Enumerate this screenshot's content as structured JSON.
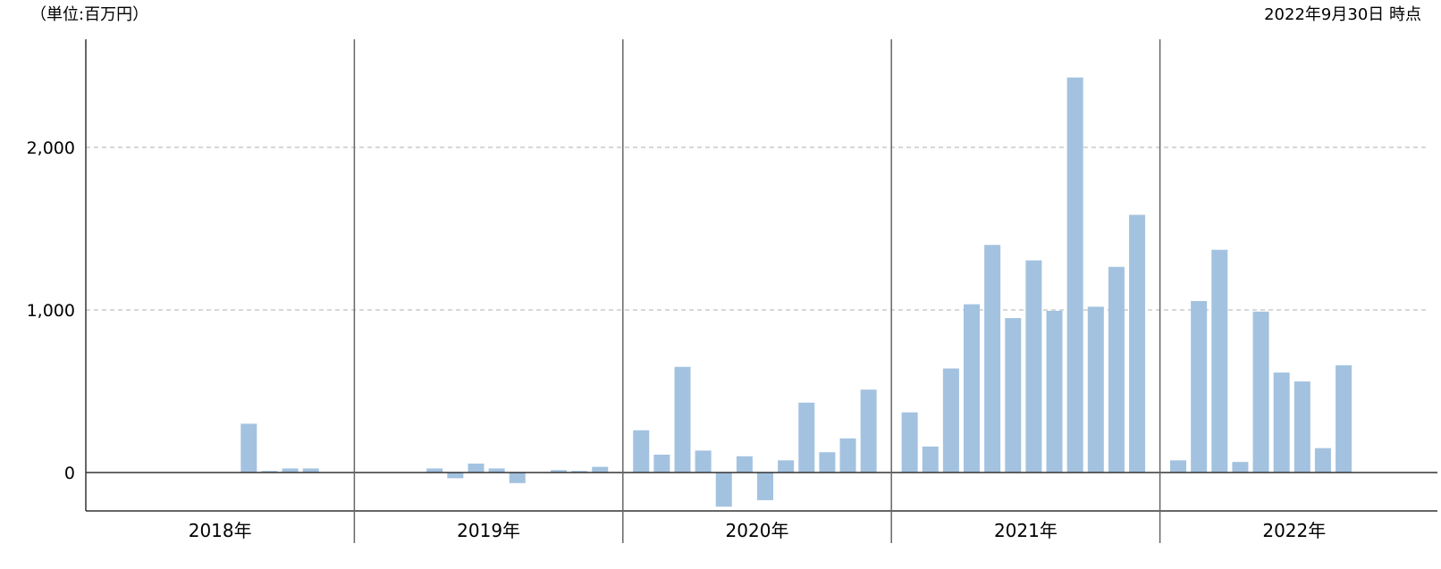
{
  "header": {
    "unit": "（単位:百万円）",
    "as_of": "2022年9月30日 時点"
  },
  "colors": {
    "bar": "#a3c2e0",
    "axis": "#333333",
    "grid": "#cccccc",
    "divider": "#666666"
  },
  "chart_data": {
    "type": "bar",
    "title": "",
    "xlabel": "",
    "ylabel": "",
    "unit": "百万円",
    "ylim": [
      -230,
      2600
    ],
    "yticks": [
      0,
      1000,
      2000
    ],
    "ytick_labels": [
      "0",
      "1,000",
      "2,000"
    ],
    "grid": {
      "y": true,
      "style": "dashed"
    },
    "legend": "none",
    "groups": [
      {
        "label": "2018年",
        "months": [
          1,
          2,
          3,
          4,
          5,
          6,
          7,
          8,
          9,
          10,
          11,
          12
        ],
        "values": [
          null,
          null,
          null,
          null,
          null,
          null,
          null,
          300,
          10,
          25,
          25,
          null
        ]
      },
      {
        "label": "2019年",
        "months": [
          1,
          2,
          3,
          4,
          5,
          6,
          7,
          8,
          9,
          10,
          11,
          12
        ],
        "values": [
          null,
          null,
          null,
          25,
          -35,
          55,
          25,
          -65,
          null,
          15,
          10,
          35
        ]
      },
      {
        "label": "2020年",
        "months": [
          1,
          2,
          3,
          4,
          5,
          6,
          7,
          8,
          9,
          10,
          11,
          12
        ],
        "values": [
          260,
          110,
          650,
          135,
          -210,
          100,
          -170,
          75,
          430,
          125,
          210,
          510
        ]
      },
      {
        "label": "2021年",
        "months": [
          1,
          2,
          3,
          4,
          5,
          6,
          7,
          8,
          9,
          10,
          11,
          12
        ],
        "values": [
          370,
          160,
          640,
          1035,
          1400,
          950,
          1305,
          995,
          2430,
          1020,
          1265,
          1585
        ]
      },
      {
        "label": "2022年",
        "months": [
          1,
          2,
          3,
          4,
          5,
          6,
          7,
          8,
          9,
          10,
          11,
          12
        ],
        "values": [
          75,
          1055,
          1370,
          65,
          990,
          615,
          560,
          150,
          660,
          null,
          null,
          null
        ]
      }
    ]
  }
}
